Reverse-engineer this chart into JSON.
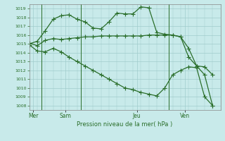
{
  "background_color": "#c8eaea",
  "grid_color": "#a0cccc",
  "line_color": "#2a6e2a",
  "marker_style": "+",
  "marker_size": 4,
  "xlabel_text": "Pression niveau de la mer( hPa )",
  "ylim": [
    1007.5,
    1019.5
  ],
  "yticks": [
    1008,
    1009,
    1010,
    1011,
    1012,
    1013,
    1014,
    1015,
    1016,
    1017,
    1018,
    1019
  ],
  "day_labels": [
    "Mer",
    "Sam",
    "Jeu",
    "Ven"
  ],
  "day_positions": [
    0.5,
    4.5,
    13.5,
    19.5
  ],
  "vline_positions": [
    1.5,
    6.5,
    17.5
  ],
  "xlim": [
    0,
    24
  ],
  "series1_x": [
    0,
    1,
    2,
    3,
    4,
    5,
    6,
    7,
    8,
    9,
    10,
    11,
    12,
    13,
    14,
    15,
    16,
    17,
    18,
    19,
    20,
    21,
    22,
    23
  ],
  "series1_y": [
    1015.1,
    1014.8,
    1015.4,
    1015.6,
    1015.5,
    1015.6,
    1015.7,
    1015.8,
    1015.8,
    1015.9,
    1015.9,
    1015.9,
    1015.9,
    1015.9,
    1015.9,
    1016.0,
    1016.0,
    1016.0,
    1016.0,
    1015.8,
    1014.5,
    1012.5,
    1011.5,
    1008.0
  ],
  "series2_x": [
    0,
    1,
    2,
    3,
    4,
    5,
    6,
    7,
    8,
    9,
    10,
    11,
    12,
    13,
    14,
    15,
    16,
    17,
    18,
    19,
    20,
    21,
    22,
    23
  ],
  "series2_y": [
    1015.0,
    1015.3,
    1016.5,
    1017.8,
    1018.2,
    1018.3,
    1017.8,
    1017.5,
    1016.8,
    1016.7,
    1017.5,
    1018.5,
    1018.4,
    1018.4,
    1019.2,
    1019.1,
    1016.3,
    1016.1,
    1016.0,
    1015.8,
    1013.5,
    1012.5,
    1012.4,
    1011.5
  ],
  "series3_x": [
    0,
    1,
    2,
    3,
    4,
    5,
    6,
    7,
    8,
    9,
    10,
    11,
    12,
    13,
    14,
    15,
    16,
    17,
    18,
    19,
    20,
    21,
    22,
    23
  ],
  "series3_y": [
    1014.9,
    1014.2,
    1014.1,
    1014.5,
    1014.1,
    1013.5,
    1013.0,
    1012.5,
    1012.0,
    1011.5,
    1011.0,
    1010.5,
    1010.0,
    1009.8,
    1009.5,
    1009.3,
    1009.1,
    1010.0,
    1011.5,
    1012.0,
    1012.4,
    1012.3,
    1009.0,
    1008.0
  ]
}
